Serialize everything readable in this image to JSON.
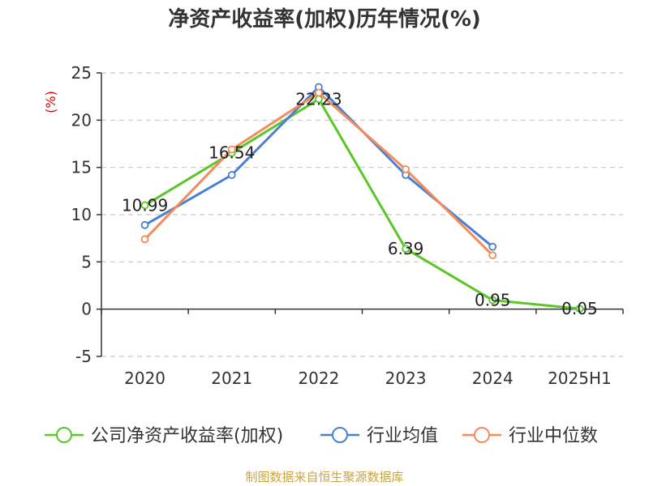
{
  "chart_data": {
    "type": "line",
    "title": "净资产收益率(加权)历年情况(%)",
    "ylabel": "(%)",
    "xlabel": "",
    "categories": [
      "2020",
      "2021",
      "2022",
      "2023",
      "2024",
      "2025H1"
    ],
    "ylim": [
      -5,
      25
    ],
    "yticks": [
      -5,
      0,
      5,
      10,
      15,
      20,
      25
    ],
    "grid": true,
    "legend_position": "bottom",
    "series": [
      {
        "name": "公司净资产收益率(加权)",
        "color": "#5ac727",
        "values": [
          10.99,
          16.54,
          22.23,
          6.39,
          0.95,
          0.05
        ],
        "labels": [
          "10.99",
          "16.54",
          "22.23",
          "6.39",
          "0.95",
          "0.05"
        ]
      },
      {
        "name": "行业均值",
        "color": "#4a7fd4",
        "values": [
          8.9,
          14.2,
          23.5,
          14.2,
          6.6,
          null
        ]
      },
      {
        "name": "行业中位数",
        "color": "#f38c5a",
        "values": [
          7.4,
          16.9,
          22.9,
          14.8,
          5.7,
          null
        ]
      }
    ]
  },
  "source_text": "制图数据来自恒生聚源数据库"
}
